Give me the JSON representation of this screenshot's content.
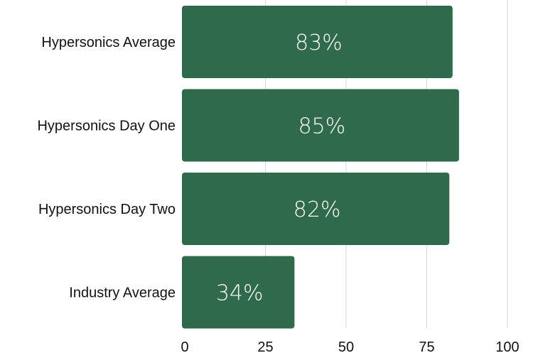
{
  "chart_data": {
    "type": "bar",
    "orientation": "horizontal",
    "categories": [
      "Hypersonics Average",
      "Hypersonics Day One",
      "Hypersonics Day Two",
      "Industry Average"
    ],
    "values": [
      83,
      85,
      82,
      34
    ],
    "data_labels": [
      "83%",
      "85%",
      "82%",
      "34%"
    ],
    "title": "",
    "xlabel": "",
    "ylabel": "",
    "xlim": [
      0,
      100
    ],
    "x_ticks": [
      0,
      25,
      50,
      75,
      100
    ],
    "x_tick_labels": [
      "0",
      "25",
      "50",
      "75",
      "100"
    ],
    "grid": true,
    "legend": "none",
    "bar_color": "#2e6a4b"
  }
}
